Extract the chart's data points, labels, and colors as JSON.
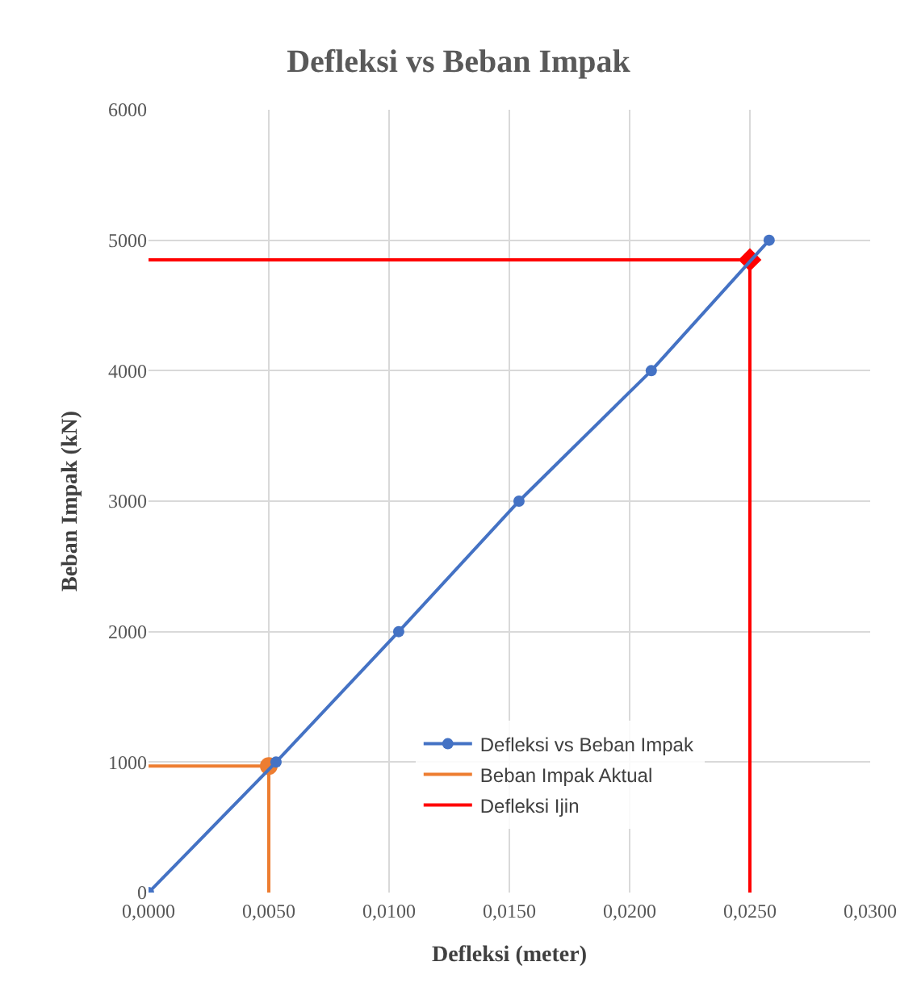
{
  "chart_data": {
    "type": "line",
    "title": "Defleksi vs Beban Impak",
    "xlabel": "Defleksi (meter)",
    "ylabel": "Beban Impak (kN)",
    "xlim": [
      0,
      0.03
    ],
    "xticks": [
      {
        "value": 0,
        "label": "0,0000"
      },
      {
        "value": 0.005,
        "label": "0,0050"
      },
      {
        "value": 0.01,
        "label": "0,0100"
      },
      {
        "value": 0.015,
        "label": "0,0150"
      },
      {
        "value": 0.02,
        "label": "0,0200"
      },
      {
        "value": 0.025,
        "label": "0,0250"
      },
      {
        "value": 0.03,
        "label": "0,0300"
      }
    ],
    "ylim": [
      0,
      6000
    ],
    "yticks": [
      0,
      1000,
      2000,
      3000,
      4000,
      5000,
      6000
    ],
    "grid": true,
    "legend": "bottom",
    "marker": "circle",
    "line_style": "solid",
    "series": [
      {
        "name": "Defleksi vs Beban Impak",
        "color": "#4472c4",
        "x": [
          0,
          0.0053,
          0.0104,
          0.0154,
          0.0209,
          0.0258
        ],
        "values": [
          0,
          1000,
          2000,
          3000,
          4000,
          5000
        ]
      },
      {
        "name": "Beban Impak Aktual",
        "color": "#ed7d31",
        "marker": "none",
        "x": [
          0,
          0.005,
          0.005
        ],
        "values": [
          970,
          970,
          0
        ]
      },
      {
        "type": "scatter",
        "color": "#ed7d31",
        "marker": "circle",
        "x": [
          0.005
        ],
        "values": [
          970
        ]
      },
      {
        "name": "Defleksi Ijin",
        "color": "#ff0000",
        "marker": "none",
        "x": [
          0,
          0.025,
          0.025
        ],
        "values": [
          4850,
          4850,
          0
        ]
      },
      {
        "type": "scatter",
        "color": "#ff0000",
        "marker": "diamond",
        "x": [
          0.025
        ],
        "values": [
          4850
        ]
      }
    ]
  }
}
